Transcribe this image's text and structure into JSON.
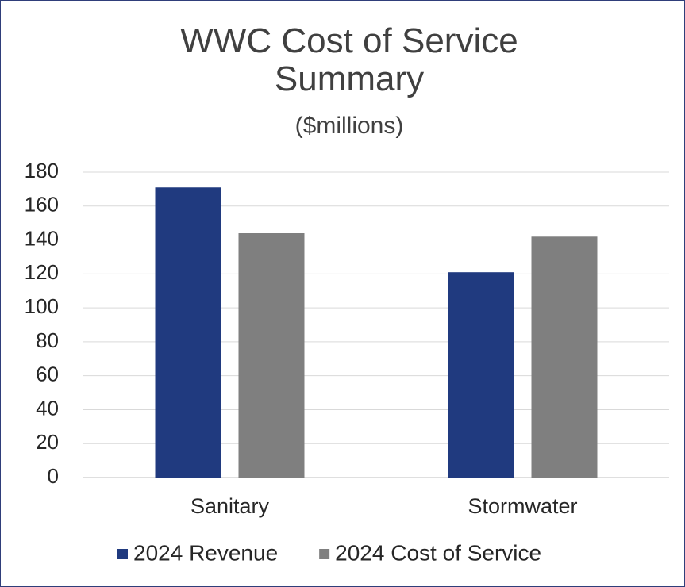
{
  "chart_data": {
    "type": "bar",
    "title": "WWC Cost of Service Summary",
    "subtitle": "($millions)",
    "categories": [
      "Sanitary",
      "Stormwater"
    ],
    "series": [
      {
        "name": "2024 Revenue",
        "color": "#203a7f",
        "values": [
          171,
          121
        ]
      },
      {
        "name": "2024 Cost of Service",
        "color": "#7f7f7f",
        "values": [
          144,
          142
        ]
      }
    ],
    "ylim": [
      0,
      180
    ],
    "yticks": [
      0,
      20,
      40,
      60,
      80,
      100,
      120,
      140,
      160,
      180
    ],
    "grid": true,
    "legend": "bottom"
  }
}
